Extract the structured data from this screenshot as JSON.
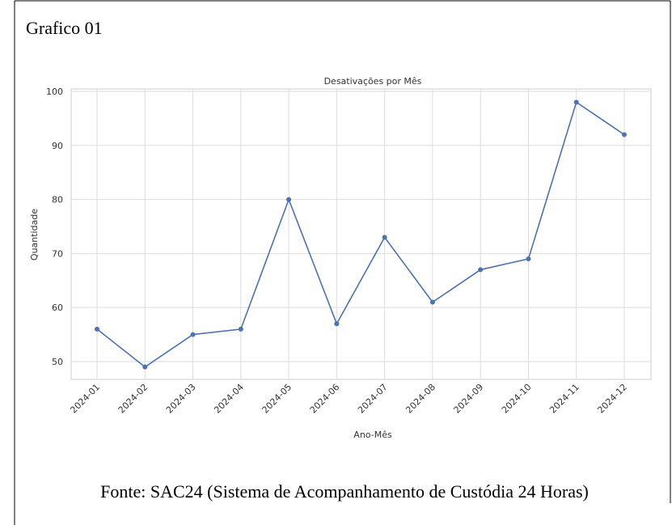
{
  "caption": "Grafico 01",
  "chart_data": {
    "type": "line",
    "title": "Desativações por Mês",
    "x_label": "Ano-Mês",
    "y_label": "Quantidade",
    "categories": [
      "2024-01",
      "2024-02",
      "2024-03",
      "2024-04",
      "2024-05",
      "2024-06",
      "2024-07",
      "2024-08",
      "2024-09",
      "2024-10",
      "2024-11",
      "2024-12"
    ],
    "values": [
      56,
      49,
      55,
      56,
      80,
      57,
      73,
      61,
      67,
      69,
      98,
      92
    ],
    "color": "#4c72b0",
    "ylim": [
      46.7,
      100.45
    ],
    "yticks": [
      50,
      60,
      70,
      80,
      90,
      100
    ],
    "grid": true
  },
  "source": "Fonte: SAC24 (Sistema de Acompanhamento de Custódia 24 Horas)"
}
